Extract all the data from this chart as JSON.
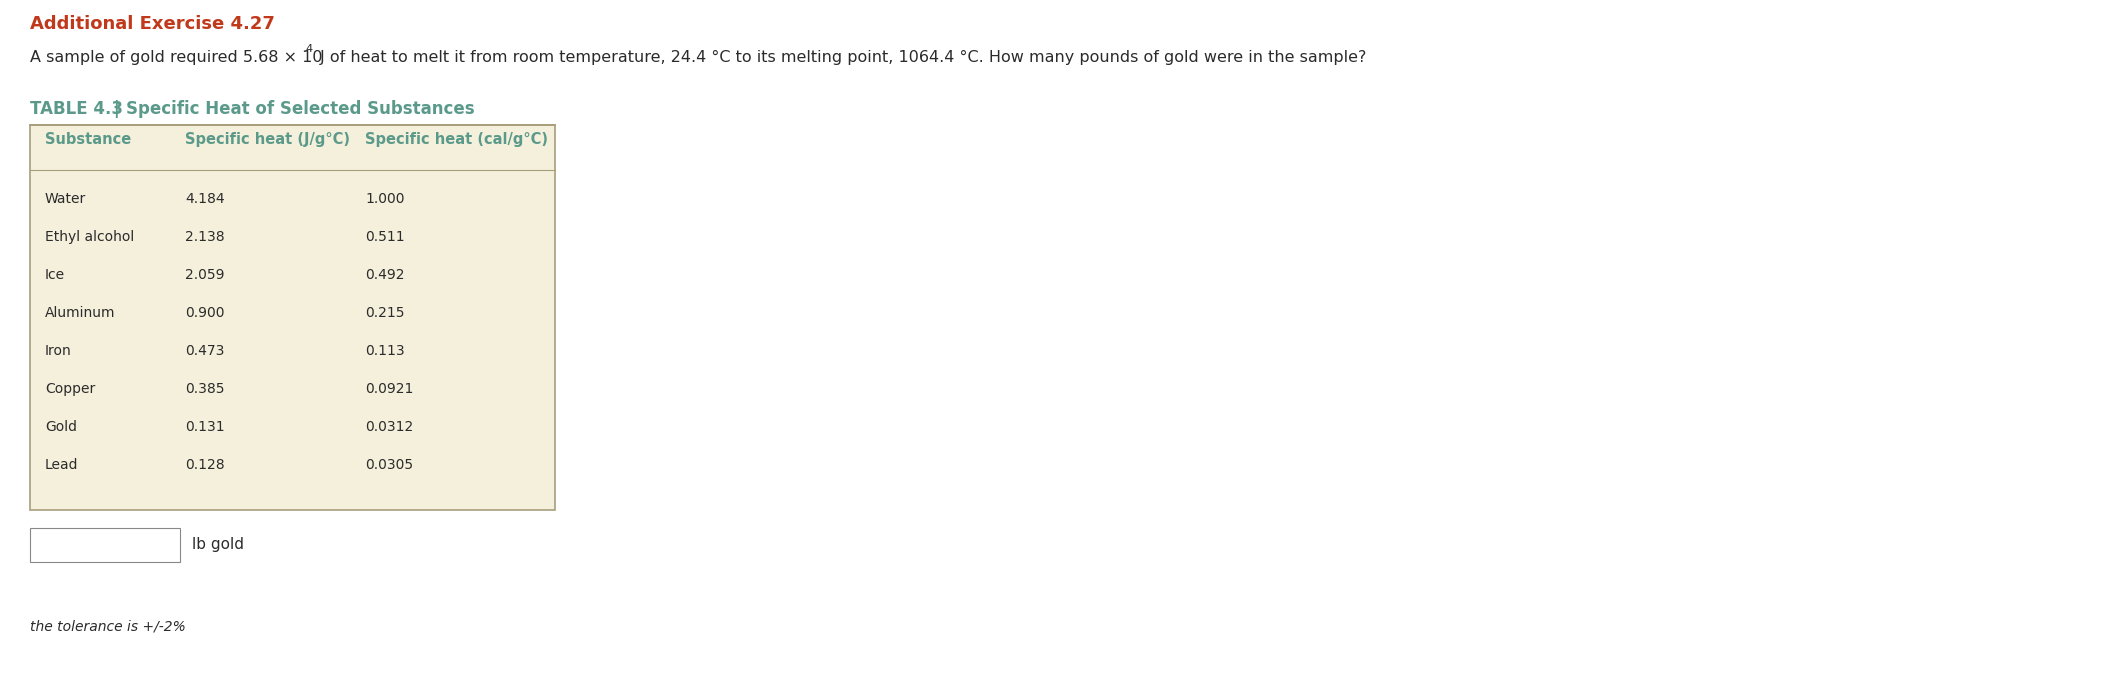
{
  "exercise_title": "Additional Exercise 4.27",
  "exercise_title_color": "#C0391B",
  "problem_text_before": "A sample of gold required 5.68 × 10",
  "problem_superscript": "4",
  "problem_text_after": " J of heat to melt it from room temperature, 24.4 °C to its melting point, 1064.4 °C. How many pounds of gold were in the sample?",
  "table_title": "TABLE 4.3",
  "table_title_color": "#5B9A8A",
  "table_subtitle": "Specific Heat of Selected Substances",
  "table_bg_color": "#F5F0DC",
  "table_header_color": "#5B9A8A",
  "table_border_color": "#A89E7A",
  "col_headers": [
    "Substance",
    "Specific heat (J/g°C)",
    "Specific heat (cal/g°C)"
  ],
  "substances": [
    "Water",
    "Ethyl alcohol",
    "Ice",
    "Aluminum",
    "Iron",
    "Copper",
    "Gold",
    "Lead"
  ],
  "specific_heat_j": [
    "4.184",
    "2.138",
    "2.059",
    "0.900",
    "0.473",
    "0.385",
    "0.131",
    "0.128"
  ],
  "specific_heat_cal": [
    "1.000",
    "0.511",
    "0.492",
    "0.215",
    "0.113",
    "0.0921",
    "0.0312",
    "0.0305"
  ],
  "answer_box_label": "lb gold",
  "tolerance_text": "the tolerance is +/-2%",
  "bg_color": "#FFFFFF",
  "text_color": "#2B2B2B",
  "title_fontsize": 13,
  "problem_fontsize": 11.5,
  "table_title_fontsize": 12,
  "col_header_fontsize": 10.5,
  "data_fontsize": 10,
  "answer_label_fontsize": 11,
  "tolerance_fontsize": 10
}
